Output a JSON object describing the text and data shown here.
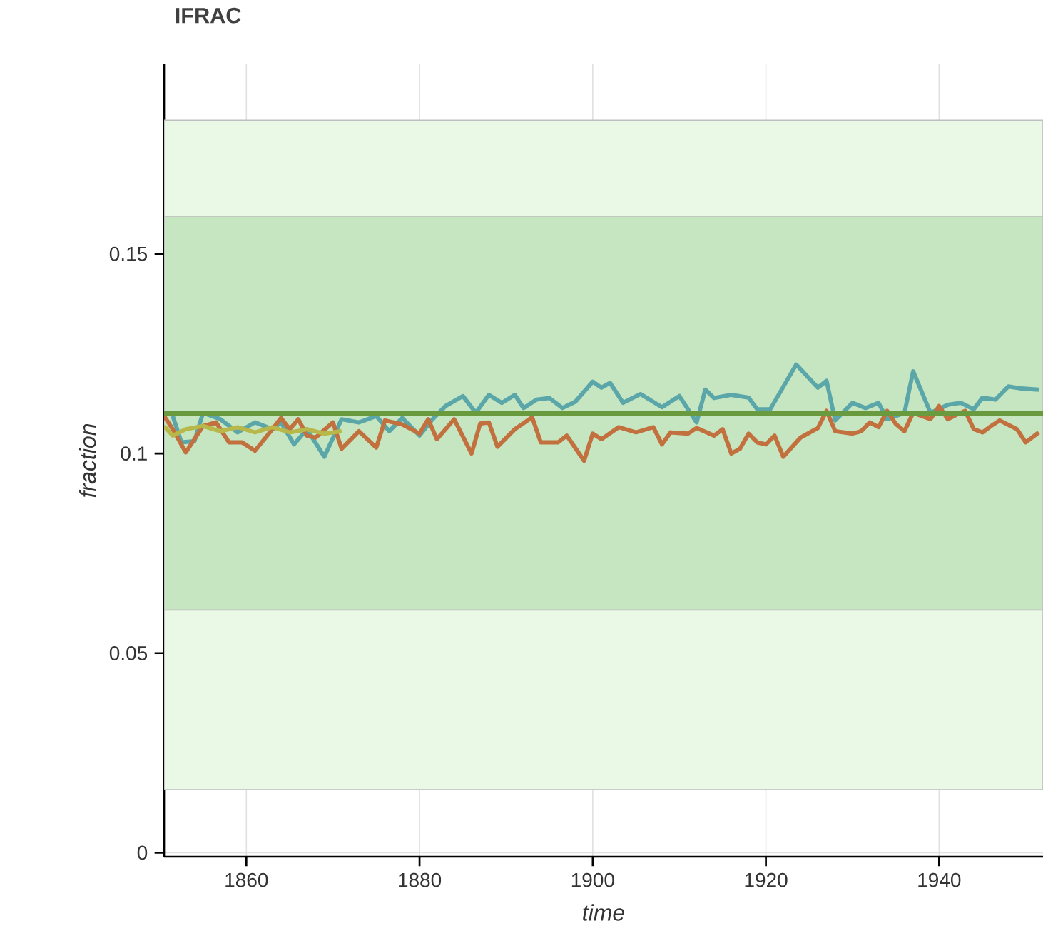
{
  "chart_data": {
    "type": "line",
    "title": "IFRAC",
    "xlabel": "time",
    "ylabel": "fraction",
    "xlim": [
      1850.5,
      1952
    ],
    "ylim": [
      -0.001,
      0.1975
    ],
    "xticks": [
      1860,
      1880,
      1900,
      1920,
      1940
    ],
    "yticks": [
      0,
      0.05,
      0.1,
      0.15
    ],
    "grid": true,
    "bands": [
      {
        "axis": "y",
        "from": 0.0158,
        "to": 0.1835,
        "color": "#eaf8e6"
      },
      {
        "axis": "y",
        "from": 0.0608,
        "to": 0.1594,
        "color": "#c6e6c2"
      }
    ],
    "ref_lines": [
      {
        "axis": "y",
        "value": 0.11,
        "color": "#6a9a3e"
      }
    ],
    "series": [
      {
        "color": "#5aa6a8",
        "x": [
          1851.5,
          1852.5,
          1854,
          1855,
          1857,
          1859,
          1861,
          1863,
          1864,
          1865.5,
          1867,
          1869,
          1871,
          1873,
          1875,
          1876.5,
          1878,
          1880,
          1881.5,
          1883,
          1885,
          1886.5,
          1888,
          1889.5,
          1891,
          1892,
          1893.5,
          1895,
          1896.5,
          1898,
          1900,
          1901,
          1902,
          1903.5,
          1905.5,
          1908,
          1910,
          1912,
          1913,
          1914,
          1916,
          1918,
          1919,
          1920.5,
          1923.5,
          1926,
          1927,
          1928,
          1930,
          1931.5,
          1933,
          1934,
          1936,
          1937,
          1939,
          1941,
          1942.5,
          1944,
          1945,
          1946.5,
          1948,
          1949.5,
          1951.5
        ],
        "values": [
          0.1094,
          0.1028,
          0.1031,
          0.1102,
          0.1086,
          0.1053,
          0.1078,
          0.1061,
          0.1078,
          0.1023,
          0.1061,
          0.0992,
          0.1086,
          0.1078,
          0.1094,
          0.1056,
          0.1089,
          0.1045,
          0.1086,
          0.1119,
          0.1144,
          0.1102,
          0.1147,
          0.1127,
          0.1147,
          0.1114,
          0.1135,
          0.1139,
          0.1114,
          0.113,
          0.118,
          0.1165,
          0.1177,
          0.1127,
          0.1149,
          0.1116,
          0.1144,
          0.1078,
          0.116,
          0.1139,
          0.1147,
          0.114,
          0.1111,
          0.1111,
          0.1223,
          0.1165,
          0.1182,
          0.1083,
          0.1127,
          0.1114,
          0.1127,
          0.1086,
          0.1102,
          0.1206,
          0.1102,
          0.1122,
          0.1127,
          0.1111,
          0.114,
          0.1135,
          0.1168,
          0.1163,
          0.116
        ]
      },
      {
        "color": "#c2703d",
        "x": [
          1850.5,
          1851.5,
          1853,
          1855,
          1856.5,
          1858,
          1859.5,
          1861,
          1863,
          1864,
          1865,
          1866,
          1867,
          1868,
          1870,
          1871,
          1873,
          1875,
          1876,
          1878,
          1880,
          1881,
          1882,
          1884,
          1886,
          1887,
          1888,
          1889,
          1891,
          1893,
          1894,
          1896,
          1897,
          1899,
          1900,
          1901,
          1903,
          1905,
          1907,
          1908,
          1909,
          1911,
          1912,
          1914,
          1915,
          1916,
          1917,
          1918,
          1919,
          1920,
          1921,
          1922,
          1924,
          1926,
          1927,
          1928,
          1930,
          1931,
          1932,
          1933,
          1934,
          1935,
          1936,
          1937,
          1938,
          1939,
          1940,
          1941,
          1942,
          1943,
          1944,
          1945,
          1946,
          1947,
          1949,
          1950,
          1951.5
        ],
        "values": [
          0.1094,
          0.1061,
          0.1003,
          0.1069,
          0.1078,
          0.1028,
          0.1028,
          0.1007,
          0.1061,
          0.1089,
          0.1061,
          0.1086,
          0.1045,
          0.104,
          0.1078,
          0.1012,
          0.1056,
          0.1015,
          0.1083,
          0.1073,
          0.105,
          0.1086,
          0.1036,
          0.1086,
          0.1,
          0.1075,
          0.1078,
          0.1017,
          0.1061,
          0.1091,
          0.1028,
          0.1028,
          0.1045,
          0.0982,
          0.105,
          0.1036,
          0.1066,
          0.1053,
          0.1066,
          0.1023,
          0.1053,
          0.105,
          0.1064,
          0.1045,
          0.1061,
          0.1,
          0.1012,
          0.105,
          0.1028,
          0.1023,
          0.1045,
          0.0992,
          0.104,
          0.1064,
          0.1107,
          0.1056,
          0.105,
          0.1056,
          0.1078,
          0.1066,
          0.1107,
          0.1074,
          0.1056,
          0.1102,
          0.1094,
          0.1086,
          0.1119,
          0.1086,
          0.1097,
          0.1107,
          0.1061,
          0.1053,
          0.1069,
          0.1083,
          0.1061,
          0.1028,
          0.1053
        ]
      },
      {
        "color": "#b8b84a",
        "x": [
          1850.5,
          1851.5,
          1853,
          1855,
          1857,
          1859,
          1861,
          1863,
          1865,
          1867,
          1869,
          1871
        ],
        "values": [
          0.1069,
          0.1045,
          0.1061,
          0.1069,
          0.1056,
          0.1066,
          0.1053,
          0.1066,
          0.1053,
          0.1061,
          0.105,
          0.1056
        ]
      }
    ]
  }
}
